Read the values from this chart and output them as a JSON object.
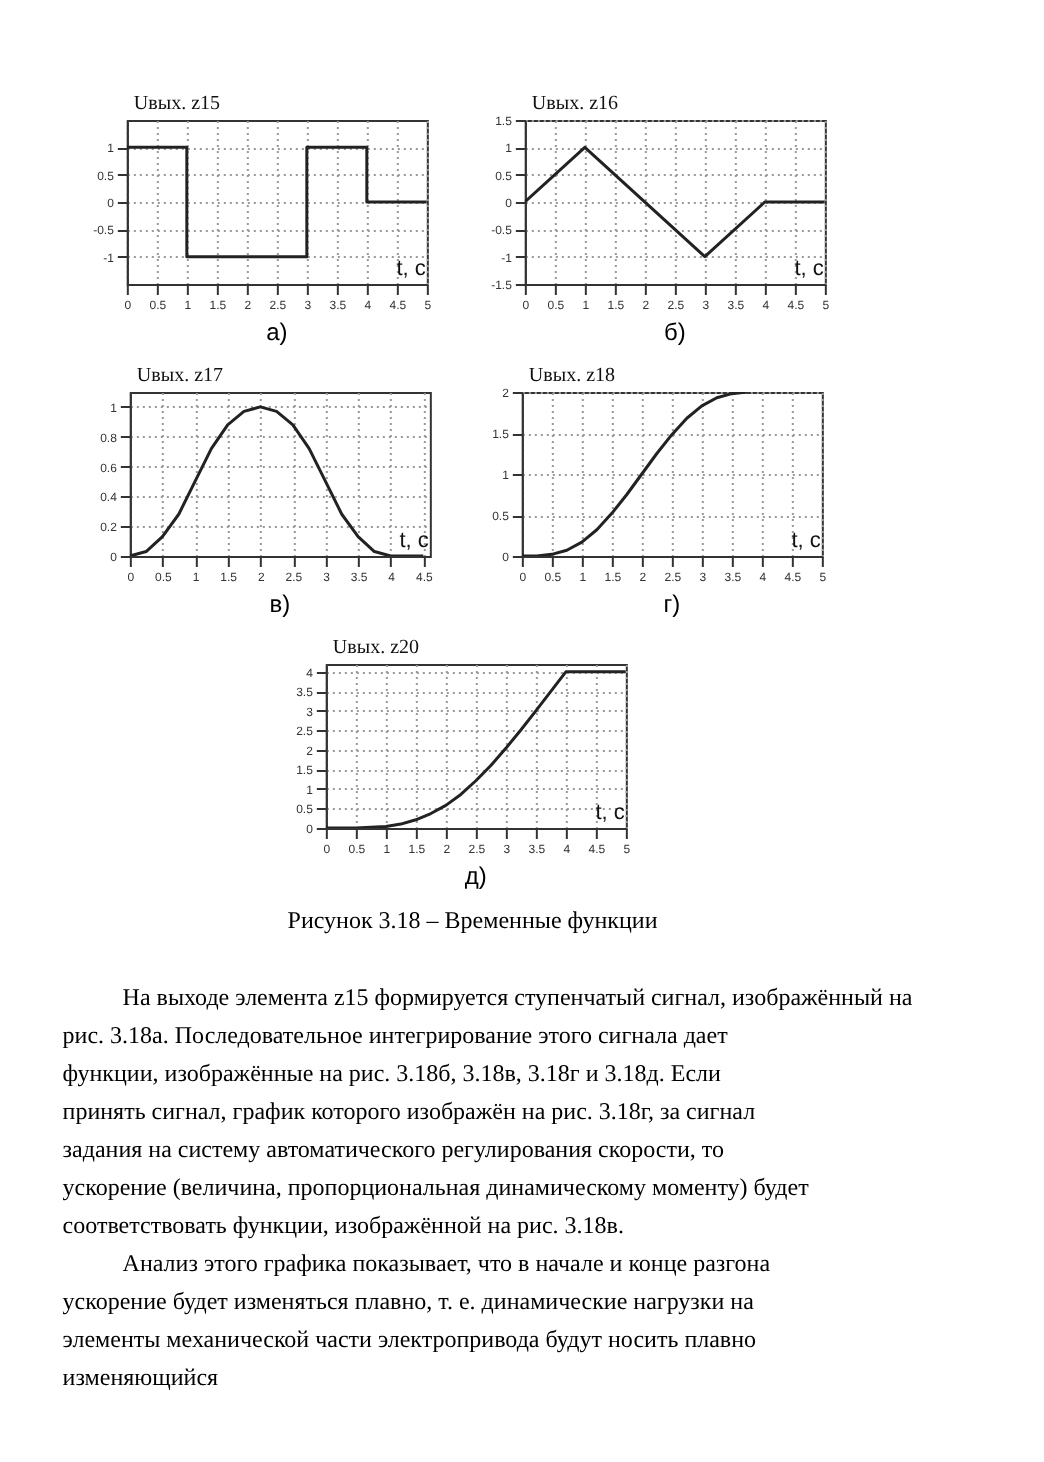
{
  "chart_data": [
    {
      "type": "step",
      "title": "а)",
      "ylabel": "Uвых. z15",
      "xlabel": "t, c",
      "xlim": [
        0,
        5
      ],
      "xticks": [
        0,
        0.5,
        1,
        1.5,
        2,
        2.5,
        3,
        3.5,
        4,
        4.5,
        5
      ],
      "ylim": [
        -1.5,
        1.5
      ],
      "yticks": [
        -1,
        -0.5,
        0,
        0.5,
        1
      ],
      "grid": true,
      "color": "#222222",
      "x": [
        0,
        1,
        3,
        4,
        5
      ],
      "values": [
        1,
        -1,
        1,
        0,
        0
      ]
    },
    {
      "type": "line",
      "title": "б)",
      "ylabel": "Uвых. z16",
      "xlabel": "t, c",
      "xlim": [
        0,
        5
      ],
      "xticks": [
        0,
        0.5,
        1,
        1.5,
        2,
        2.5,
        3,
        3.5,
        4,
        4.5,
        5
      ],
      "ylim": [
        -1.5,
        1.5
      ],
      "yticks": [
        -1.5,
        -1,
        -0.5,
        0,
        0.5,
        1,
        1.5
      ],
      "grid": true,
      "color": "#222222",
      "x": [
        0,
        1,
        3,
        4,
        5
      ],
      "values": [
        0,
        1,
        -1,
        0,
        0
      ]
    },
    {
      "type": "line",
      "title": "в)",
      "ylabel": "Uвых. z17",
      "xlabel": "t, c",
      "xlim": [
        0,
        4.6
      ],
      "xticks": [
        0,
        0.5,
        1,
        1.5,
        2,
        2.5,
        3,
        3.5,
        4,
        4.5
      ],
      "ylim": [
        0,
        1.1
      ],
      "yticks": [
        0,
        0.2,
        0.4,
        0.6,
        0.8,
        1
      ],
      "grid": true,
      "color": "#222222",
      "x": [
        0,
        0.25,
        0.5,
        0.75,
        1,
        1.25,
        1.5,
        1.75,
        2,
        2.25,
        2.5,
        2.75,
        3,
        3.25,
        3.5,
        3.75,
        4,
        4.5
      ],
      "values": [
        0,
        0.03,
        0.13,
        0.28,
        0.5,
        0.72,
        0.88,
        0.97,
        1,
        0.97,
        0.88,
        0.72,
        0.5,
        0.28,
        0.13,
        0.03,
        0,
        0
      ]
    },
    {
      "type": "line",
      "title": "г)",
      "ylabel": "Uвых. z18",
      "xlabel": "t, c",
      "xlim": [
        0,
        5
      ],
      "xticks": [
        0,
        0.5,
        1,
        1.5,
        2,
        2.5,
        3,
        3.5,
        4,
        4.5,
        5
      ],
      "ylim": [
        0,
        2
      ],
      "yticks": [
        0,
        0.5,
        1,
        1.5,
        2
      ],
      "grid": true,
      "color": "#222222",
      "x": [
        0,
        0.25,
        0.5,
        0.75,
        1,
        1.25,
        1.5,
        1.75,
        2,
        2.25,
        2.5,
        2.75,
        3,
        3.25,
        3.5,
        3.75
      ],
      "values": [
        0,
        0,
        0.02,
        0.07,
        0.17,
        0.32,
        0.52,
        0.75,
        1,
        1.25,
        1.48,
        1.68,
        1.83,
        1.93,
        1.98,
        2
      ]
    },
    {
      "type": "line",
      "title": "д)",
      "ylabel": "Uвых. z20",
      "xlabel": "t, c",
      "xlim": [
        0,
        5
      ],
      "xticks": [
        0,
        0.5,
        1,
        1.5,
        2,
        2.5,
        3,
        3.5,
        4,
        4.5,
        5
      ],
      "ylim": [
        0,
        4.2
      ],
      "yticks": [
        0,
        0.5,
        1,
        1.5,
        2,
        2.5,
        3,
        3.5,
        4
      ],
      "grid": true,
      "color": "#222222",
      "x": [
        0,
        0.5,
        1,
        1.25,
        1.5,
        1.75,
        2,
        2.25,
        2.5,
        2.75,
        3,
        3.25,
        3.5,
        3.75,
        4,
        5
      ],
      "values": [
        0,
        0,
        0.04,
        0.1,
        0.21,
        0.37,
        0.58,
        0.86,
        1.21,
        1.6,
        2.04,
        2.51,
        3,
        3.5,
        4,
        4
      ]
    },
    {
      "type": "other",
      "title": "Рисунок 3.18 – Временные функции",
      "annotations": [
        "На выходе элемента z15 формируется ступенчатый сигнал, изображённый на рис. 3.18а. Последовательное интегрирование этого сигнала дает функции, изображённые на рис. 3.18б, 3.18в, 3.18г и 3.18д. Если принять сигнал, график которого изображён на рис. 3.18г, за сигнал задания на систему автоматического регулирования скорости, то ускорение (величина, пропорциональная динамическому моменту) будет соответствовать функции, изображённой на рис. 3.18в.",
        "Анализ этого графика показывает, что в начале и конце разгона ускорение будет изменяться плавно, т. е. динамические нагрузки на элементы механической части электропривода будут носить плавно изменяющийся"
      ]
    }
  ]
}
